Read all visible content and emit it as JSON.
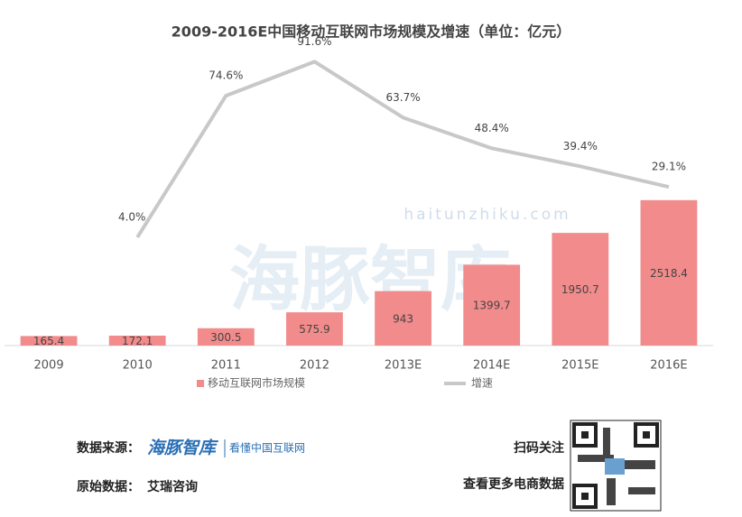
{
  "chart_data": {
    "type": "bar_line",
    "title": "2009-2016E中国移动互联网市场规模及增速（单位：亿元）",
    "categories": [
      "2009",
      "2010",
      "2011",
      "2012",
      "2013E",
      "2014E",
      "2015E",
      "2016E"
    ],
    "series": [
      {
        "name": "移动互联网市场规模",
        "type": "bar",
        "color": "#f28b8b",
        "values": [
          165.4,
          172.1,
          300.5,
          575.9,
          943,
          1399.7,
          1950.7,
          2518.4
        ]
      },
      {
        "name": "增速",
        "type": "line",
        "axis": "y2",
        "color": "#c8c8c8",
        "values": [
          null,
          4.0,
          74.6,
          91.6,
          63.7,
          48.4,
          39.4,
          29.1
        ],
        "value_labels": [
          null,
          "4.0%",
          "74.6%",
          "91.6%",
          "63.7%",
          "48.4%",
          "39.4%",
          "29.1%"
        ]
      }
    ],
    "ylim": [
      0,
      5000
    ],
    "y2lim": [
      -50,
      94
    ],
    "watermark": {
      "domain": "haitunzhiku.com",
      "name": "海豚智库"
    }
  },
  "footer": {
    "source_label": "数据来源：",
    "logo_name": "海豚智库",
    "logo_slogan": "看懂中国互联网",
    "origin_label": "原始数据：",
    "origin": "艾瑞咨询",
    "qr_caption_1": "扫码关注",
    "qr_caption_2": "查看更多电商数据"
  }
}
